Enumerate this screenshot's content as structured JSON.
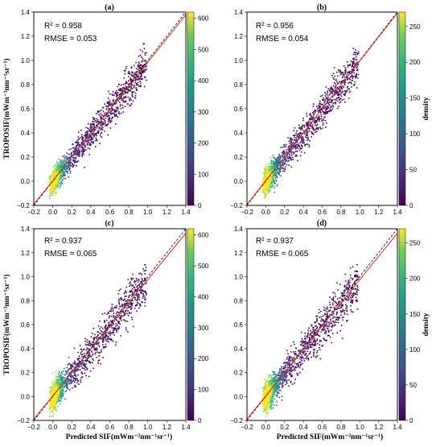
{
  "figure": {
    "ylabel": "TROPOSIF(mWm⁻²nm⁻¹sr⁻¹)",
    "xlabel": "Predicted SIF(mWm⁻²nm⁻¹sr⁻¹)",
    "colorbar_label": "density",
    "colors": {
      "one_to_one": "#000000",
      "fit": "#e8281e",
      "cmap": "viridis"
    }
  },
  "chart_data": [
    {
      "type": "scatter",
      "title": "(a)",
      "stats": {
        "r2": "R² = 0.958",
        "rmse": "RMSE = 0.053"
      },
      "xlim": [
        -0.2,
        1.4
      ],
      "ylim": [
        -0.2,
        1.4
      ],
      "x_ticks": [
        "−0.2",
        "0.0",
        "0.2",
        "0.4",
        "0.6",
        "0.8",
        "1.0",
        "1.2",
        "1.4"
      ],
      "y_ticks": [
        "−0.2",
        "0.0",
        "0.2",
        "0.4",
        "0.6",
        "0.8",
        "1.0",
        "1.2",
        "1.4"
      ],
      "colorbar": {
        "max": 620,
        "ticks": [
          "0",
          "100",
          "200",
          "300",
          "400",
          "500",
          "600"
        ]
      },
      "lines": {
        "one_to_one": {
          "slope": 1,
          "intercept": 0
        },
        "fit": {
          "slope": 0.98,
          "intercept": 0.005
        }
      },
      "spread": 0.06
    },
    {
      "type": "scatter",
      "title": "(b)",
      "stats": {
        "r2": "R² = 0.956",
        "rmse": "RMSE = 0.054"
      },
      "xlim": [
        -0.2,
        1.4
      ],
      "ylim": [
        -0.2,
        1.4
      ],
      "x_ticks": [
        "−0.2",
        "0.0",
        "0.2",
        "0.4",
        "0.6",
        "0.8",
        "1.0",
        "1.2",
        "1.4"
      ],
      "y_ticks": [
        "−0.2",
        "0.0",
        "0.2",
        "0.4",
        "0.6",
        "0.8",
        "1.0",
        "1.2",
        "1.4"
      ],
      "colorbar": {
        "max": 270,
        "ticks": [
          "0",
          "50",
          "100",
          "150",
          "200",
          "250"
        ]
      },
      "lines": {
        "one_to_one": {
          "slope": 1,
          "intercept": 0
        },
        "fit": {
          "slope": 0.99,
          "intercept": 0.005
        }
      },
      "spread": 0.065
    },
    {
      "type": "scatter",
      "title": "(c)",
      "stats": {
        "r2": "R² = 0.937",
        "rmse": "RMSE = 0.065"
      },
      "xlim": [
        -0.2,
        1.4
      ],
      "ylim": [
        -0.2,
        1.4
      ],
      "x_ticks": [
        "−0.2",
        "0.0",
        "0.2",
        "0.4",
        "0.6",
        "0.8",
        "1.0",
        "1.2",
        "1.4"
      ],
      "y_ticks": [
        "−0.2",
        "0.0",
        "0.2",
        "0.4",
        "0.6",
        "0.8",
        "1.0",
        "1.2",
        "1.4"
      ],
      "colorbar": {
        "max": 620,
        "ticks": [
          "0",
          "100",
          "200",
          "300",
          "400",
          "500",
          "600"
        ]
      },
      "lines": {
        "one_to_one": {
          "slope": 1,
          "intercept": 0
        },
        "fit": {
          "slope": 0.97,
          "intercept": 0.005
        }
      },
      "spread": 0.075
    },
    {
      "type": "scatter",
      "title": "(d)",
      "stats": {
        "r2": "R² = 0.937",
        "rmse": "RMSE = 0.065"
      },
      "xlim": [
        -0.2,
        1.4
      ],
      "ylim": [
        -0.2,
        1.4
      ],
      "x_ticks": [
        "−0.2",
        "0.0",
        "0.2",
        "0.4",
        "0.6",
        "0.8",
        "1.0",
        "1.2",
        "1.4"
      ],
      "y_ticks": [
        "−0.2",
        "0.0",
        "0.2",
        "0.4",
        "0.6",
        "0.8",
        "1.0",
        "1.2",
        "1.4"
      ],
      "colorbar": {
        "max": 270,
        "ticks": [
          "0",
          "50",
          "100",
          "150",
          "200",
          "250"
        ]
      },
      "lines": {
        "one_to_one": {
          "slope": 1,
          "intercept": 0
        },
        "fit": {
          "slope": 0.97,
          "intercept": 0.005
        }
      },
      "spread": 0.075
    }
  ]
}
